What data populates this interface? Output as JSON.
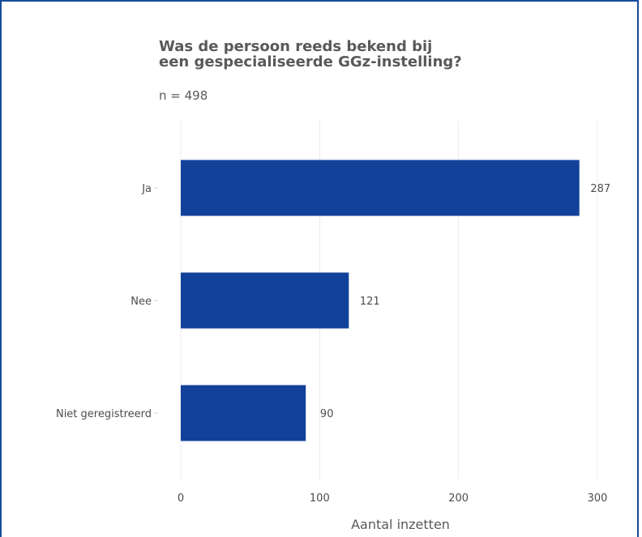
{
  "chart_data": {
    "type": "bar",
    "orientation": "horizontal",
    "title": "Was de persoon reeds bekend bij\neen gespecialiseerde GGz-instelling?",
    "subtitle": "n = 498",
    "categories": [
      "Ja",
      "Nee",
      "Niet geregistreerd"
    ],
    "values": [
      287,
      121,
      90
    ],
    "xlabel": "Aantal inzetten",
    "xticks": [
      "0",
      "100",
      "200",
      "300"
    ],
    "xlim": [
      0,
      300
    ],
    "grid": true,
    "bar_color": "#12419a"
  }
}
